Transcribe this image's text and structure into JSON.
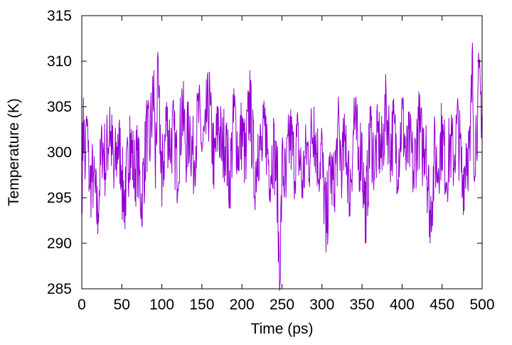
{
  "chart_data": {
    "type": "line",
    "title": "",
    "xlabel": "Time (ps)",
    "ylabel": "Temperature (K)",
    "xlim": [
      0,
      500
    ],
    "ylim": [
      285,
      315
    ],
    "xticks": [
      "0",
      "50",
      "100",
      "150",
      "200",
      "250",
      "300",
      "350",
      "400",
      "450",
      "500"
    ],
    "yticks": [
      "285",
      "290",
      "295",
      "300",
      "305",
      "310",
      "315"
    ],
    "grid": false,
    "legend": "none",
    "series": [
      {
        "color": "#9400D3",
        "x": [
          0,
          2,
          4,
          6,
          8,
          10,
          15,
          20,
          25,
          30,
          35,
          40,
          45,
          50,
          55,
          60,
          65,
          70,
          75,
          80,
          85,
          90,
          92,
          95,
          100,
          105,
          110,
          115,
          120,
          125,
          130,
          135,
          140,
          145,
          150,
          155,
          160,
          165,
          170,
          175,
          180,
          185,
          190,
          195,
          200,
          205,
          210,
          215,
          220,
          225,
          230,
          235,
          240,
          245,
          248,
          250,
          255,
          260,
          265,
          270,
          275,
          280,
          285,
          290,
          295,
          300,
          305,
          310,
          315,
          320,
          325,
          330,
          335,
          340,
          345,
          350,
          355,
          360,
          365,
          370,
          375,
          380,
          385,
          390,
          395,
          400,
          405,
          410,
          415,
          420,
          425,
          430,
          435,
          440,
          445,
          450,
          455,
          460,
          465,
          470,
          475,
          480,
          485,
          488,
          490,
          495,
          500
        ],
        "y": [
          293,
          306,
          297,
          304,
          300,
          296,
          298,
          291,
          303,
          297,
          305,
          296,
          302,
          298,
          293,
          304,
          296,
          301,
          292,
          304,
          299,
          309,
          296,
          311,
          294,
          305,
          300,
          303,
          296,
          307,
          299,
          304,
          297,
          306,
          300,
          302,
          307,
          296,
          305,
          299,
          303,
          294,
          307,
          298,
          304,
          297,
          309,
          295,
          302,
          299,
          304,
          296,
          303,
          293,
          286,
          300,
          295,
          304,
          297,
          303,
          295,
          301,
          299,
          305,
          297,
          302,
          289,
          300,
          294,
          304,
          297,
          303,
          293,
          306,
          298,
          302,
          290,
          305,
          297,
          303,
          298,
          307,
          299,
          304,
          297,
          306,
          298,
          302,
          296,
          305,
          299,
          303,
          290,
          301,
          297,
          304,
          296,
          302,
          298,
          305,
          295,
          301,
          299,
          312,
          297,
          308,
          304
        ]
      }
    ]
  }
}
